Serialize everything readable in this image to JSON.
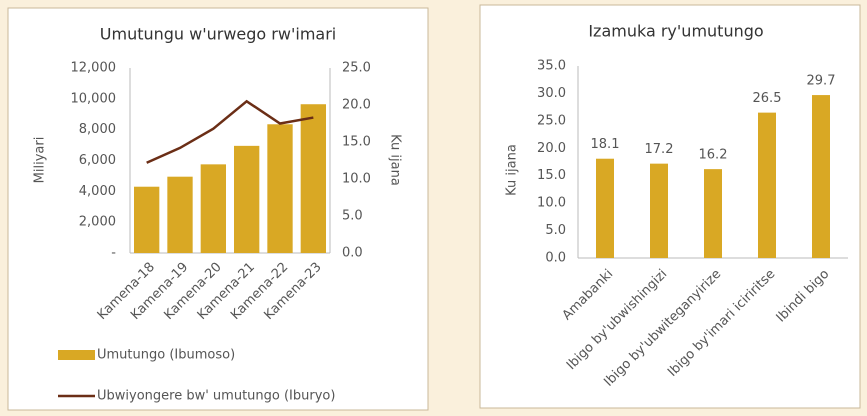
{
  "chart_data": [
    {
      "type": "combo",
      "title": "Umutungu w'urwego rw'imari",
      "categories": [
        "Kamena-18",
        "Kamena-19",
        "Kamena-20",
        "Kamena-21",
        "Kamena-22",
        "Kamena-23"
      ],
      "series": [
        {
          "name": "Umutungo (Ibumoso)",
          "type": "bar",
          "color": "#d9a824",
          "values": [
            4300,
            4950,
            5750,
            6950,
            8350,
            9650
          ]
        },
        {
          "name": "Ubwiyongere bw' umutungo (Iburyo)",
          "type": "line",
          "axis": "y2",
          "color": "#6b2e16",
          "values": [
            12.2,
            14.2,
            16.8,
            20.5,
            17.5,
            18.3
          ]
        }
      ],
      "ylabel": "Miliyari",
      "y2label": "Ku ijana",
      "ylim": [
        0,
        12000
      ],
      "yticks": [
        {
          "value": 0,
          "label": "-"
        },
        {
          "value": 2000,
          "label": "2,000"
        },
        {
          "value": 4000,
          "label": "4,000"
        },
        {
          "value": 6000,
          "label": "6,000"
        },
        {
          "value": 8000,
          "label": "8,000"
        },
        {
          "value": 10000,
          "label": "10,000"
        },
        {
          "value": 12000,
          "label": "12,000"
        }
      ],
      "y2lim": [
        0,
        25
      ],
      "y2ticks": [
        {
          "value": 0,
          "label": "0.0"
        },
        {
          "value": 5,
          "label": "5.0"
        },
        {
          "value": 10,
          "label": "10.0"
        },
        {
          "value": 15,
          "label": "15.0"
        },
        {
          "value": 20,
          "label": "20.0"
        },
        {
          "value": 25,
          "label": "25.0"
        }
      ],
      "legend": "bottom"
    },
    {
      "type": "bar",
      "title": "Izamuka ry'umutungo",
      "categories": [
        "Amabanki",
        "Ibigo by'ubwishingizi",
        "Ibigo by'ubwiteganyirize",
        "Ibigo by'imari iciriritse",
        "Ibindi bigo"
      ],
      "values": [
        18.1,
        17.2,
        16.2,
        26.5,
        29.7
      ],
      "color": "#d9a824",
      "ylabel": "Ku ijana",
      "ylim": [
        0,
        35
      ],
      "yticks": [
        {
          "value": 0,
          "label": "0.0"
        },
        {
          "value": 5,
          "label": "5.0"
        },
        {
          "value": 10,
          "label": "10.0"
        },
        {
          "value": 15,
          "label": "15.0"
        },
        {
          "value": 20,
          "label": "20.0"
        },
        {
          "value": 25,
          "label": "25.0"
        },
        {
          "value": 30,
          "label": "30.0"
        },
        {
          "value": 35,
          "label": "35.0"
        }
      ]
    }
  ]
}
